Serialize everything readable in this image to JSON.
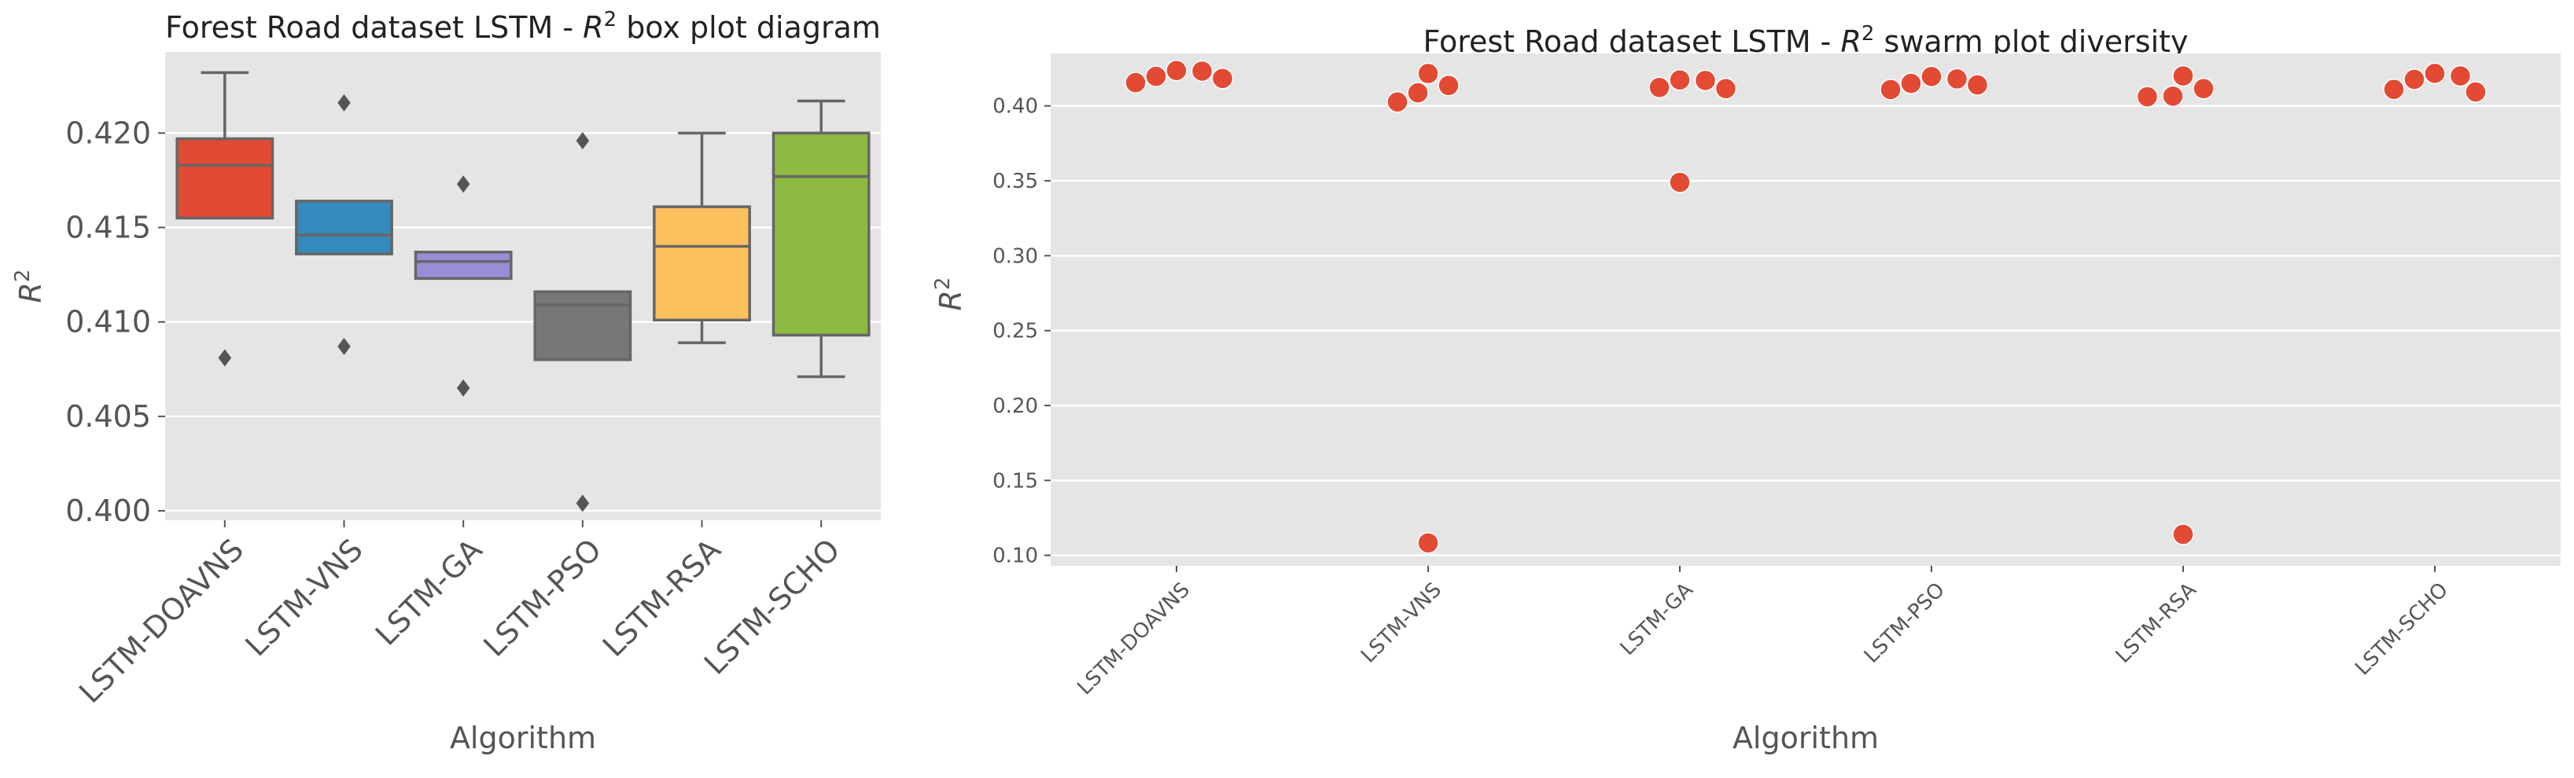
{
  "chart_data": [
    {
      "type": "box",
      "title": "Forest Road dataset LSTM -  R² box plot diagram",
      "title_parts": [
        "Forest Road dataset LSTM -  ",
        "R",
        "2",
        " box plot diagram"
      ],
      "xlabel": "Algorithm",
      "ylabel_parts": [
        "R",
        "2"
      ],
      "ylim": [
        0.3995,
        0.4243
      ],
      "yticks": [
        0.4,
        0.405,
        0.41,
        0.415,
        0.42
      ],
      "ytick_labels": [
        "0.400",
        "0.405",
        "0.410",
        "0.415",
        "0.420"
      ],
      "grid": true,
      "categories": [
        "LSTM-DOAVNS",
        "LSTM-VNS",
        "LSTM-GA",
        "LSTM-PSO",
        "LSTM-RSA",
        "LSTM-SCHO"
      ],
      "boxes": [
        {
          "name": "LSTM-DOAVNS",
          "whisker_low": 0.4155,
          "q1": 0.4155,
          "median": 0.4183,
          "q3": 0.4197,
          "whisker_high": 0.4232,
          "outliers": [
            0.4081
          ],
          "color": "#E24A33"
        },
        {
          "name": "LSTM-VNS",
          "whisker_low": 0.4136,
          "q1": 0.4136,
          "median": 0.4146,
          "q3": 0.4164,
          "whisker_high": 0.4164,
          "outliers": [
            0.4216,
            0.4087
          ],
          "color": "#348ABD"
        },
        {
          "name": "LSTM-GA",
          "whisker_low": 0.4123,
          "q1": 0.4123,
          "median": 0.4132,
          "q3": 0.4137,
          "whisker_high": 0.4137,
          "outliers": [
            0.4173,
            0.4065
          ],
          "color": "#988ED5"
        },
        {
          "name": "LSTM-PSO",
          "whisker_low": 0.408,
          "q1": 0.408,
          "median": 0.4109,
          "q3": 0.4116,
          "whisker_high": 0.4116,
          "outliers": [
            0.4196,
            0.4004
          ],
          "color": "#777777"
        },
        {
          "name": "LSTM-RSA",
          "whisker_low": 0.4089,
          "q1": 0.4101,
          "median": 0.414,
          "q3": 0.4161,
          "whisker_high": 0.42,
          "outliers": [],
          "color": "#FBC15E"
        },
        {
          "name": "LSTM-SCHO",
          "whisker_low": 0.4071,
          "q1": 0.4093,
          "median": 0.4177,
          "q3": 0.42,
          "whisker_high": 0.4217,
          "outliers": [],
          "color": "#8EBA42"
        }
      ]
    },
    {
      "type": "scatter",
      "subtype": "swarm",
      "title": "Forest Road dataset LSTM -  R² swarm plot diversity",
      "title_parts": [
        "Forest Road dataset LSTM -  ",
        "R",
        "2",
        " swarm plot diversity"
      ],
      "xlabel": "Algorithm",
      "ylabel_parts": [
        "R",
        "2"
      ],
      "ylim": [
        0.093,
        0.435
      ],
      "yticks": [
        0.1,
        0.15,
        0.2,
        0.25,
        0.3,
        0.35,
        0.4
      ],
      "ytick_labels": [
        "0.10",
        "0.15",
        "0.20",
        "0.25",
        "0.30",
        "0.35",
        "0.40"
      ],
      "grid": true,
      "marker_color": "#E24A33",
      "categories": [
        "LSTM-DOAVNS",
        "LSTM-VNS",
        "LSTM-GA",
        "LSTM-PSO",
        "LSTM-RSA",
        "LSTM-SCHO"
      ],
      "series": [
        {
          "category": "LSTM-DOAVNS",
          "values": [
            0.4232,
            0.4183,
            0.4155,
            0.4197,
            0.4236
          ]
        },
        {
          "category": "LSTM-VNS",
          "values": [
            0.4087,
            0.4216,
            0.4026,
            0.4136,
            0.1083
          ]
        },
        {
          "category": "LSTM-GA",
          "values": [
            0.4173,
            0.4123,
            0.4115,
            0.417,
            0.349
          ]
        },
        {
          "category": "LSTM-PSO",
          "values": [
            0.4196,
            0.414,
            0.4109,
            0.415,
            0.418
          ]
        },
        {
          "category": "LSTM-RSA",
          "values": [
            0.4061,
            0.42,
            0.4065,
            0.4115,
            0.114
          ]
        },
        {
          "category": "LSTM-SCHO",
          "values": [
            0.42,
            0.411,
            0.4217,
            0.4093,
            0.4177
          ]
        }
      ]
    }
  ]
}
